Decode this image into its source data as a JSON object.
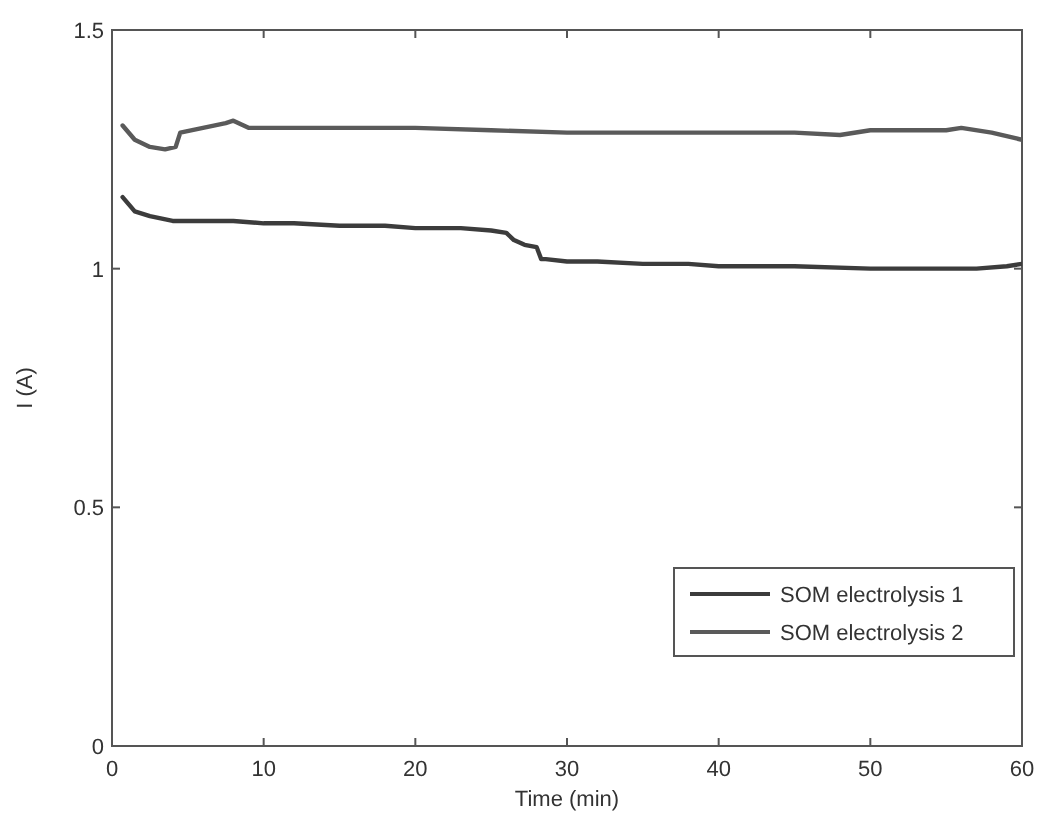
{
  "chart_data": {
    "type": "line",
    "xlabel": "Time (min)",
    "ylabel": "I (A)",
    "xlim": [
      0,
      60
    ],
    "ylim": [
      0,
      1.5
    ],
    "xticks": [
      0,
      10,
      20,
      30,
      40,
      50,
      60
    ],
    "yticks": [
      0,
      0.5,
      1,
      1.5
    ],
    "grid": false,
    "legend": "bottom right",
    "line_style": "solid",
    "marker": "none",
    "series": [
      {
        "name": "SOM electrolysis 1",
        "color": "#3c3c3c",
        "x": [
          0.7,
          1.5,
          2.5,
          4,
          6,
          8,
          10,
          12,
          15,
          18,
          20,
          23,
          25,
          26,
          26.5,
          27.2,
          28,
          28.3,
          28.6,
          30,
          32,
          35,
          38,
          40,
          45,
          50,
          53,
          55,
          57,
          59,
          60
        ],
        "values": [
          1.15,
          1.12,
          1.11,
          1.1,
          1.1,
          1.1,
          1.095,
          1.095,
          1.09,
          1.09,
          1.085,
          1.085,
          1.08,
          1.075,
          1.06,
          1.05,
          1.045,
          1.02,
          1.02,
          1.015,
          1.015,
          1.01,
          1.01,
          1.005,
          1.005,
          1.0,
          1.0,
          1.0,
          1.0,
          1.005,
          1.01
        ]
      },
      {
        "name": "SOM electrolysis 2",
        "color": "#5a5a5a",
        "x": [
          0.7,
          1.5,
          2.5,
          3.5,
          4.2,
          4.5,
          6,
          7.5,
          8,
          9,
          10,
          15,
          20,
          25,
          30,
          35,
          40,
          45,
          48,
          50,
          55,
          56,
          58,
          60
        ],
        "values": [
          1.3,
          1.27,
          1.255,
          1.25,
          1.255,
          1.285,
          1.295,
          1.305,
          1.31,
          1.295,
          1.295,
          1.295,
          1.295,
          1.29,
          1.285,
          1.285,
          1.285,
          1.285,
          1.28,
          1.29,
          1.29,
          1.295,
          1.285,
          1.27
        ]
      }
    ]
  }
}
